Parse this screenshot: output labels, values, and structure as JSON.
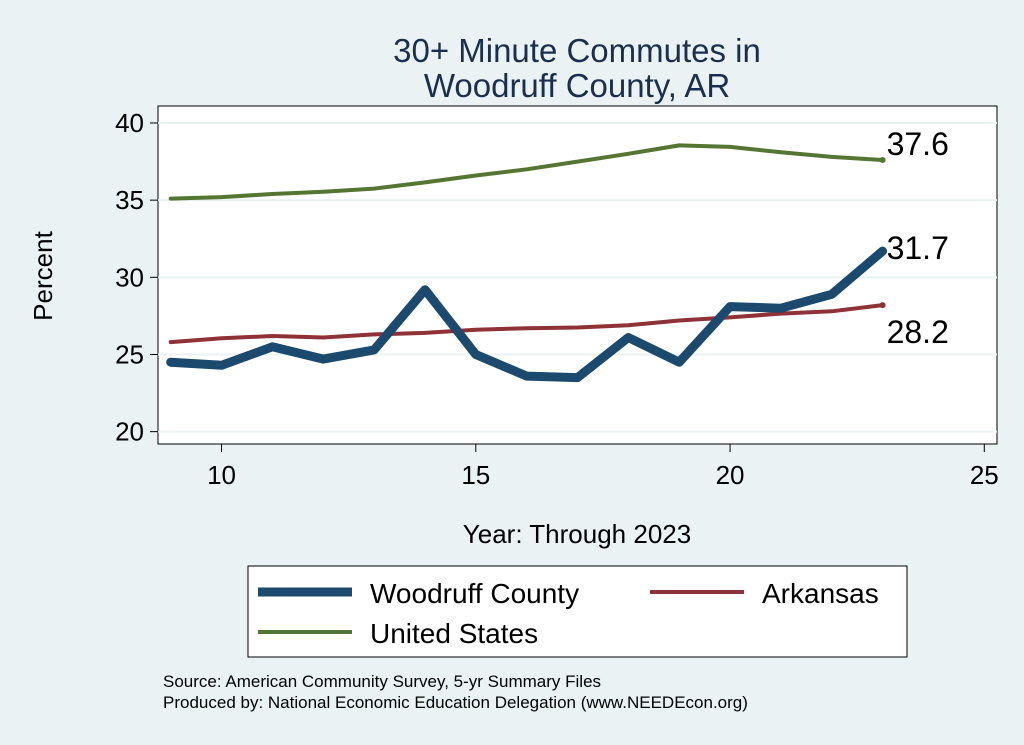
{
  "chart_data": {
    "type": "line",
    "title": [
      "30+ Minute Commutes in",
      "Woodruff County, AR"
    ],
    "xlabel": "Year: Through 2023",
    "ylabel": "Percent",
    "xlim": [
      8.75,
      25.25
    ],
    "ylim": [
      19.2,
      41.1
    ],
    "xticks": [
      10,
      15,
      20,
      25
    ],
    "yticks": [
      20,
      25,
      30,
      35,
      40
    ],
    "grid": true,
    "legend_position": "bottom",
    "x": [
      9,
      10,
      11,
      12,
      13,
      14,
      15,
      16,
      17,
      18,
      19,
      20,
      21,
      22,
      23
    ],
    "series": [
      {
        "name": "Woodruff County",
        "color": "#1c4a6e",
        "values": [
          24.5,
          24.3,
          25.5,
          24.7,
          25.3,
          29.2,
          25.0,
          23.6,
          23.5,
          26.1,
          24.5,
          28.1,
          28.0,
          28.9,
          31.7
        ],
        "end_label": "31.7"
      },
      {
        "name": "Arkansas",
        "color": "#8e3237",
        "values": [
          25.8,
          26.05,
          26.2,
          26.1,
          26.3,
          26.4,
          26.6,
          26.7,
          26.75,
          26.9,
          27.2,
          27.4,
          27.65,
          27.8,
          28.2
        ],
        "end_label": "28.2"
      },
      {
        "name": "United States",
        "color": "#547632",
        "values": [
          35.1,
          35.2,
          35.4,
          35.55,
          35.75,
          36.15,
          36.6,
          37.0,
          37.5,
          38.0,
          38.55,
          38.45,
          38.1,
          37.8,
          37.6
        ],
        "end_label": "37.6"
      }
    ],
    "notes": [
      "Source: American Community Survey, 5-yr Summary Files",
      "Produced by: National Economic Education Delegation (www.NEEDEcon.org)"
    ]
  }
}
